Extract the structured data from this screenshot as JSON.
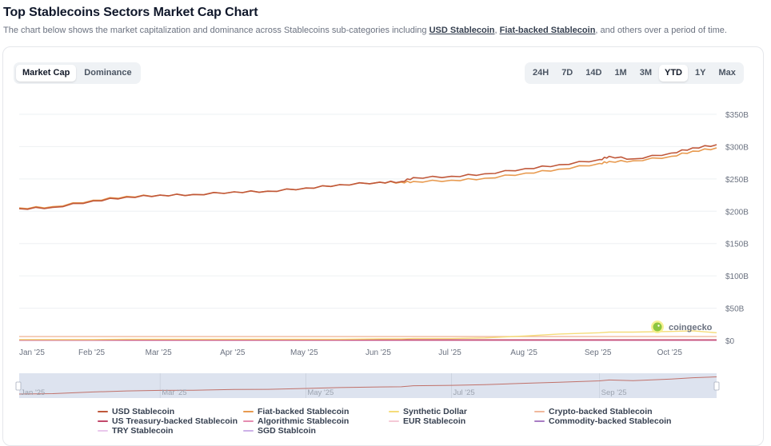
{
  "header": {
    "title": "Top Stablecoins Sectors Market Cap Chart",
    "subtitle_prefix": "The chart below shows the market capitalization and dominance across Stablecoins sub-categories including ",
    "link_1": "USD Stablecoin",
    "sep": ", ",
    "link_2": "Fiat-backed Stablecoin",
    "subtitle_suffix": ", and others over a period of time."
  },
  "view_toggle": {
    "options": [
      "Market Cap",
      "Dominance"
    ],
    "selected": "Market Cap"
  },
  "range_toggle": {
    "options": [
      "24H",
      "7D",
      "14D",
      "1M",
      "3M",
      "YTD",
      "1Y",
      "Max"
    ],
    "selected": "YTD"
  },
  "watermark": "coingecko",
  "navigator": {
    "labels": [
      "Jan '25",
      "Mar '25",
      "May '25",
      "Jul '25",
      "Sep '25"
    ]
  },
  "chart_data": {
    "type": "line",
    "title": "Top Stablecoins Sectors Market Cap Chart",
    "xlabel": "",
    "ylabel": "",
    "x_tick_labels": [
      "Jan '25",
      "Feb '25",
      "Mar '25",
      "Apr '25",
      "May '25",
      "Jun '25",
      "Jul '25",
      "Aug '25",
      "Sep '25",
      "Oct '25"
    ],
    "y_tick_labels": [
      "$0",
      "$50B",
      "$100B",
      "$150B",
      "$200B",
      "$250B",
      "$300B",
      "$350B"
    ],
    "ylim": [
      0,
      350
    ],
    "y_unit": "USD billions",
    "grid": true,
    "legend_position": "bottom",
    "x": [
      "2025-01-01",
      "2025-01-15",
      "2025-02-01",
      "2025-02-15",
      "2025-03-01",
      "2025-03-15",
      "2025-04-01",
      "2025-04-15",
      "2025-05-01",
      "2025-05-15",
      "2025-06-01",
      "2025-06-10",
      "2025-06-15",
      "2025-07-01",
      "2025-07-15",
      "2025-08-01",
      "2025-08-15",
      "2025-09-01",
      "2025-09-05",
      "2025-09-15",
      "2025-10-01",
      "2025-10-10",
      "2025-10-20"
    ],
    "series": [
      {
        "name": "USD Stablecoin",
        "color": "#c0583a",
        "values": [
          204,
          206,
          216,
          222,
          225,
          226,
          230,
          231,
          236,
          241,
          245,
          246,
          252,
          254,
          258,
          266,
          272,
          280,
          285,
          281,
          290,
          298,
          303
        ]
      },
      {
        "name": "Fiat-backed Stablecoin",
        "color": "#e89a4f",
        "values": [
          205,
          207,
          217,
          223,
          225,
          226,
          230,
          231,
          236,
          241,
          245,
          245,
          246,
          248,
          251,
          259,
          265,
          274,
          277,
          278,
          285,
          293,
          298
        ]
      },
      {
        "name": "Synthetic Dollar",
        "color": "#f5dc7a",
        "values": [
          1.5,
          1.5,
          1.5,
          2,
          2,
          2,
          2,
          2,
          2,
          2,
          2.5,
          2.5,
          3,
          3,
          4,
          7,
          10,
          12,
          13,
          13,
          14,
          15,
          12
        ]
      },
      {
        "name": "Crypto-backed Stablecoin",
        "color": "#f0b89c",
        "values": [
          6,
          6,
          6,
          6,
          6,
          6,
          6,
          6,
          6,
          6,
          6,
          6,
          6,
          6,
          6,
          6,
          6,
          6,
          6,
          6,
          6,
          6,
          6
        ]
      },
      {
        "name": "US Treasury-backed Stablecoin",
        "color": "#c2476a",
        "values": [
          1,
          1,
          1,
          1,
          1,
          1,
          1,
          1,
          1,
          1,
          1,
          1,
          1,
          1,
          1,
          1,
          1,
          1,
          1,
          1,
          1,
          1,
          1
        ]
      },
      {
        "name": "Algorithmic Stablecoin",
        "color": "#e58db1",
        "values": [
          0.5,
          0.5,
          0.5,
          0.5,
          0.5,
          0.5,
          0.5,
          0.5,
          0.5,
          0.5,
          0.5,
          0.5,
          0.5,
          0.5,
          0.5,
          0.5,
          0.5,
          0.5,
          0.5,
          0.5,
          0.5,
          0.5,
          0.5
        ]
      },
      {
        "name": "EUR Stablecoin",
        "color": "#f4c9d6",
        "values": [
          0.3,
          0.3,
          0.3,
          0.3,
          0.3,
          0.3,
          0.3,
          0.3,
          0.3,
          0.3,
          0.3,
          0.3,
          0.3,
          0.3,
          0.3,
          0.3,
          0.3,
          0.3,
          0.3,
          0.3,
          0.3,
          0.3,
          0.3
        ]
      },
      {
        "name": "Commodity-backed Stablecoin",
        "color": "#a87cc4",
        "values": [
          1,
          1,
          1,
          1,
          1,
          1,
          1,
          1,
          1,
          1,
          1,
          1,
          1,
          1,
          1,
          1,
          1,
          1,
          1,
          1,
          1,
          1,
          1
        ]
      },
      {
        "name": "TRY Stablecoin",
        "color": "#e9c8ec",
        "values": [
          0.1,
          0.1,
          0.1,
          0.1,
          0.1,
          0.1,
          0.1,
          0.1,
          0.1,
          0.1,
          0.1,
          0.1,
          0.1,
          0.1,
          0.1,
          0.1,
          0.1,
          0.1,
          0.1,
          0.1,
          0.1,
          0.1,
          0.1
        ]
      },
      {
        "name": "SGD Stablcoin",
        "color": "#cdb1e8",
        "values": [
          0.05,
          0.05,
          0.05,
          0.05,
          0.05,
          0.05,
          0.05,
          0.05,
          0.05,
          0.05,
          0.05,
          0.05,
          0.05,
          0.05,
          0.05,
          0.05,
          0.05,
          0.05,
          0.05,
          0.05,
          0.05,
          0.05,
          0.05
        ]
      }
    ]
  }
}
